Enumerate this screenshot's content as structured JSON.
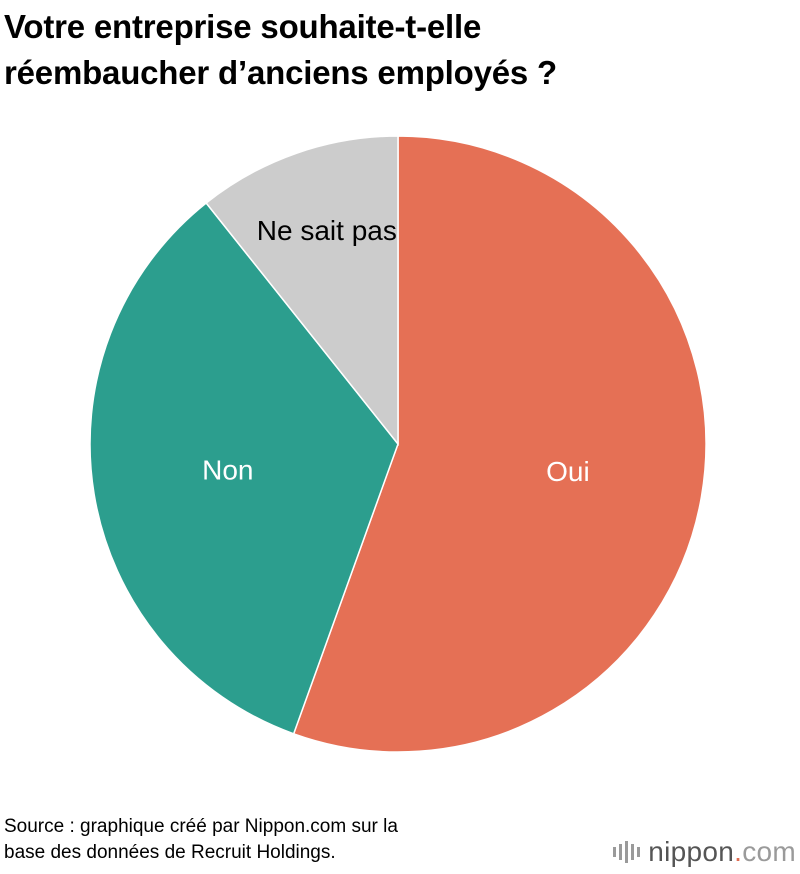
{
  "title_lines": [
    "Votre entreprise souhaite-t-elle",
    "réembaucher d’anciens employés ?"
  ],
  "chart_data": {
    "type": "pie",
    "start_angle_deg": 0,
    "direction": "clockwise",
    "slices": [
      {
        "label": "Oui",
        "value": 55.5,
        "color": "#e57055",
        "label_color": "#ffffff"
      },
      {
        "label": "Non",
        "value": 33.8,
        "color": "#2c9e8e",
        "label_color": "#ffffff"
      },
      {
        "label": "Ne sait pas",
        "value": 10.7,
        "color": "#cccccc",
        "label_color": "#000000"
      }
    ]
  },
  "source_lines": [
    "Source : graphique créé par Nippon.com sur la",
    "base des données de Recruit Holdings."
  ],
  "logo": {
    "name": "nippon",
    "dot": ".",
    "tld": "com"
  }
}
